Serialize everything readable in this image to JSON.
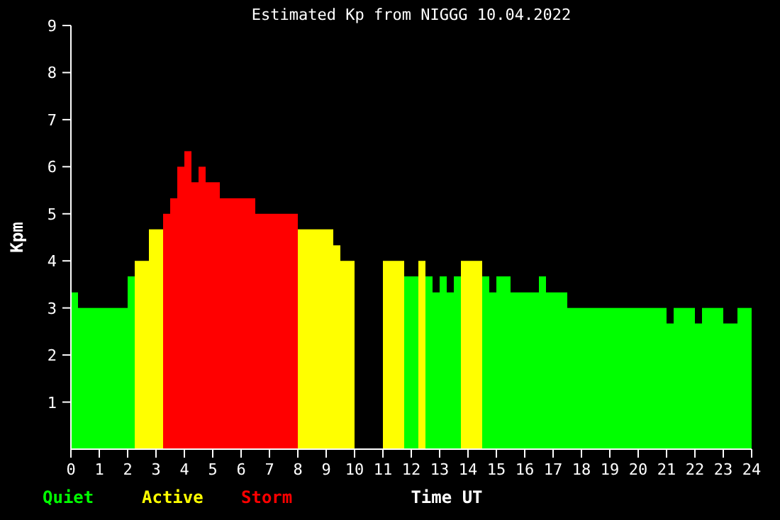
{
  "chart_data": {
    "type": "histogram",
    "title": "Estimated Kp from NIGGG 10.04.2022",
    "xlabel": "Time UT",
    "ylabel": "Kpm",
    "bins": [
      0,
      0.25,
      2,
      2.25,
      2.75,
      3.25,
      3.5,
      3.75,
      4,
      4.25,
      4.5,
      4.75,
      5.25,
      6.5,
      8,
      9.25,
      9.5,
      10,
      11,
      11.75,
      12.25,
      12.5,
      12.75,
      13,
      13.25,
      13.5,
      13.75,
      14.5,
      14.75,
      15,
      15.5,
      16.5,
      16.75,
      17.5,
      21,
      21.25,
      22,
      22.25,
      23,
      23.5,
      24
    ],
    "series": [
      {
        "name": "Quiet",
        "color": "#00ff00",
        "values": [
          3.33,
          3,
          3.67,
          null,
          null,
          null,
          null,
          null,
          null,
          null,
          null,
          null,
          null,
          null,
          null,
          null,
          null,
          null,
          null,
          3.67,
          null,
          3.67,
          3.33,
          3.67,
          3.33,
          3.67,
          null,
          3.67,
          3.33,
          3.67,
          3.33,
          3.67,
          3.33,
          3,
          2.67,
          3,
          2.67,
          3,
          2.67,
          3
        ]
      },
      {
        "name": "Active",
        "color": "#ffff00",
        "values": [
          null,
          null,
          null,
          4,
          4.67,
          null,
          null,
          null,
          null,
          null,
          null,
          null,
          null,
          null,
          4.67,
          4.33,
          4,
          null,
          4,
          null,
          4,
          null,
          null,
          null,
          null,
          null,
          4,
          null,
          null,
          null,
          null,
          null,
          null,
          null,
          null,
          null,
          null,
          null,
          null,
          null
        ]
      },
      {
        "name": "Storm",
        "color": "#ff0000",
        "values": [
          null,
          null,
          null,
          null,
          null,
          5,
          5.33,
          6,
          6.33,
          5.67,
          6,
          5.67,
          5.33,
          5,
          null,
          null,
          null,
          null,
          null,
          null,
          null,
          null,
          null,
          null,
          null,
          null,
          null,
          null,
          null,
          null,
          null,
          null,
          null,
          null,
          null,
          null,
          null,
          null,
          null,
          null
        ]
      }
    ],
    "xlim": [
      0,
      24
    ],
    "xticks": [
      0,
      1,
      2,
      3,
      4,
      5,
      6,
      7,
      8,
      9,
      10,
      11,
      12,
      13,
      14,
      15,
      16,
      17,
      18,
      19,
      20,
      21,
      22,
      23,
      24
    ],
    "ylim": [
      0,
      9
    ],
    "yticks": [
      1,
      2,
      3,
      4,
      5,
      6,
      7,
      8,
      9
    ],
    "legend": "bottom left",
    "grid": false
  }
}
